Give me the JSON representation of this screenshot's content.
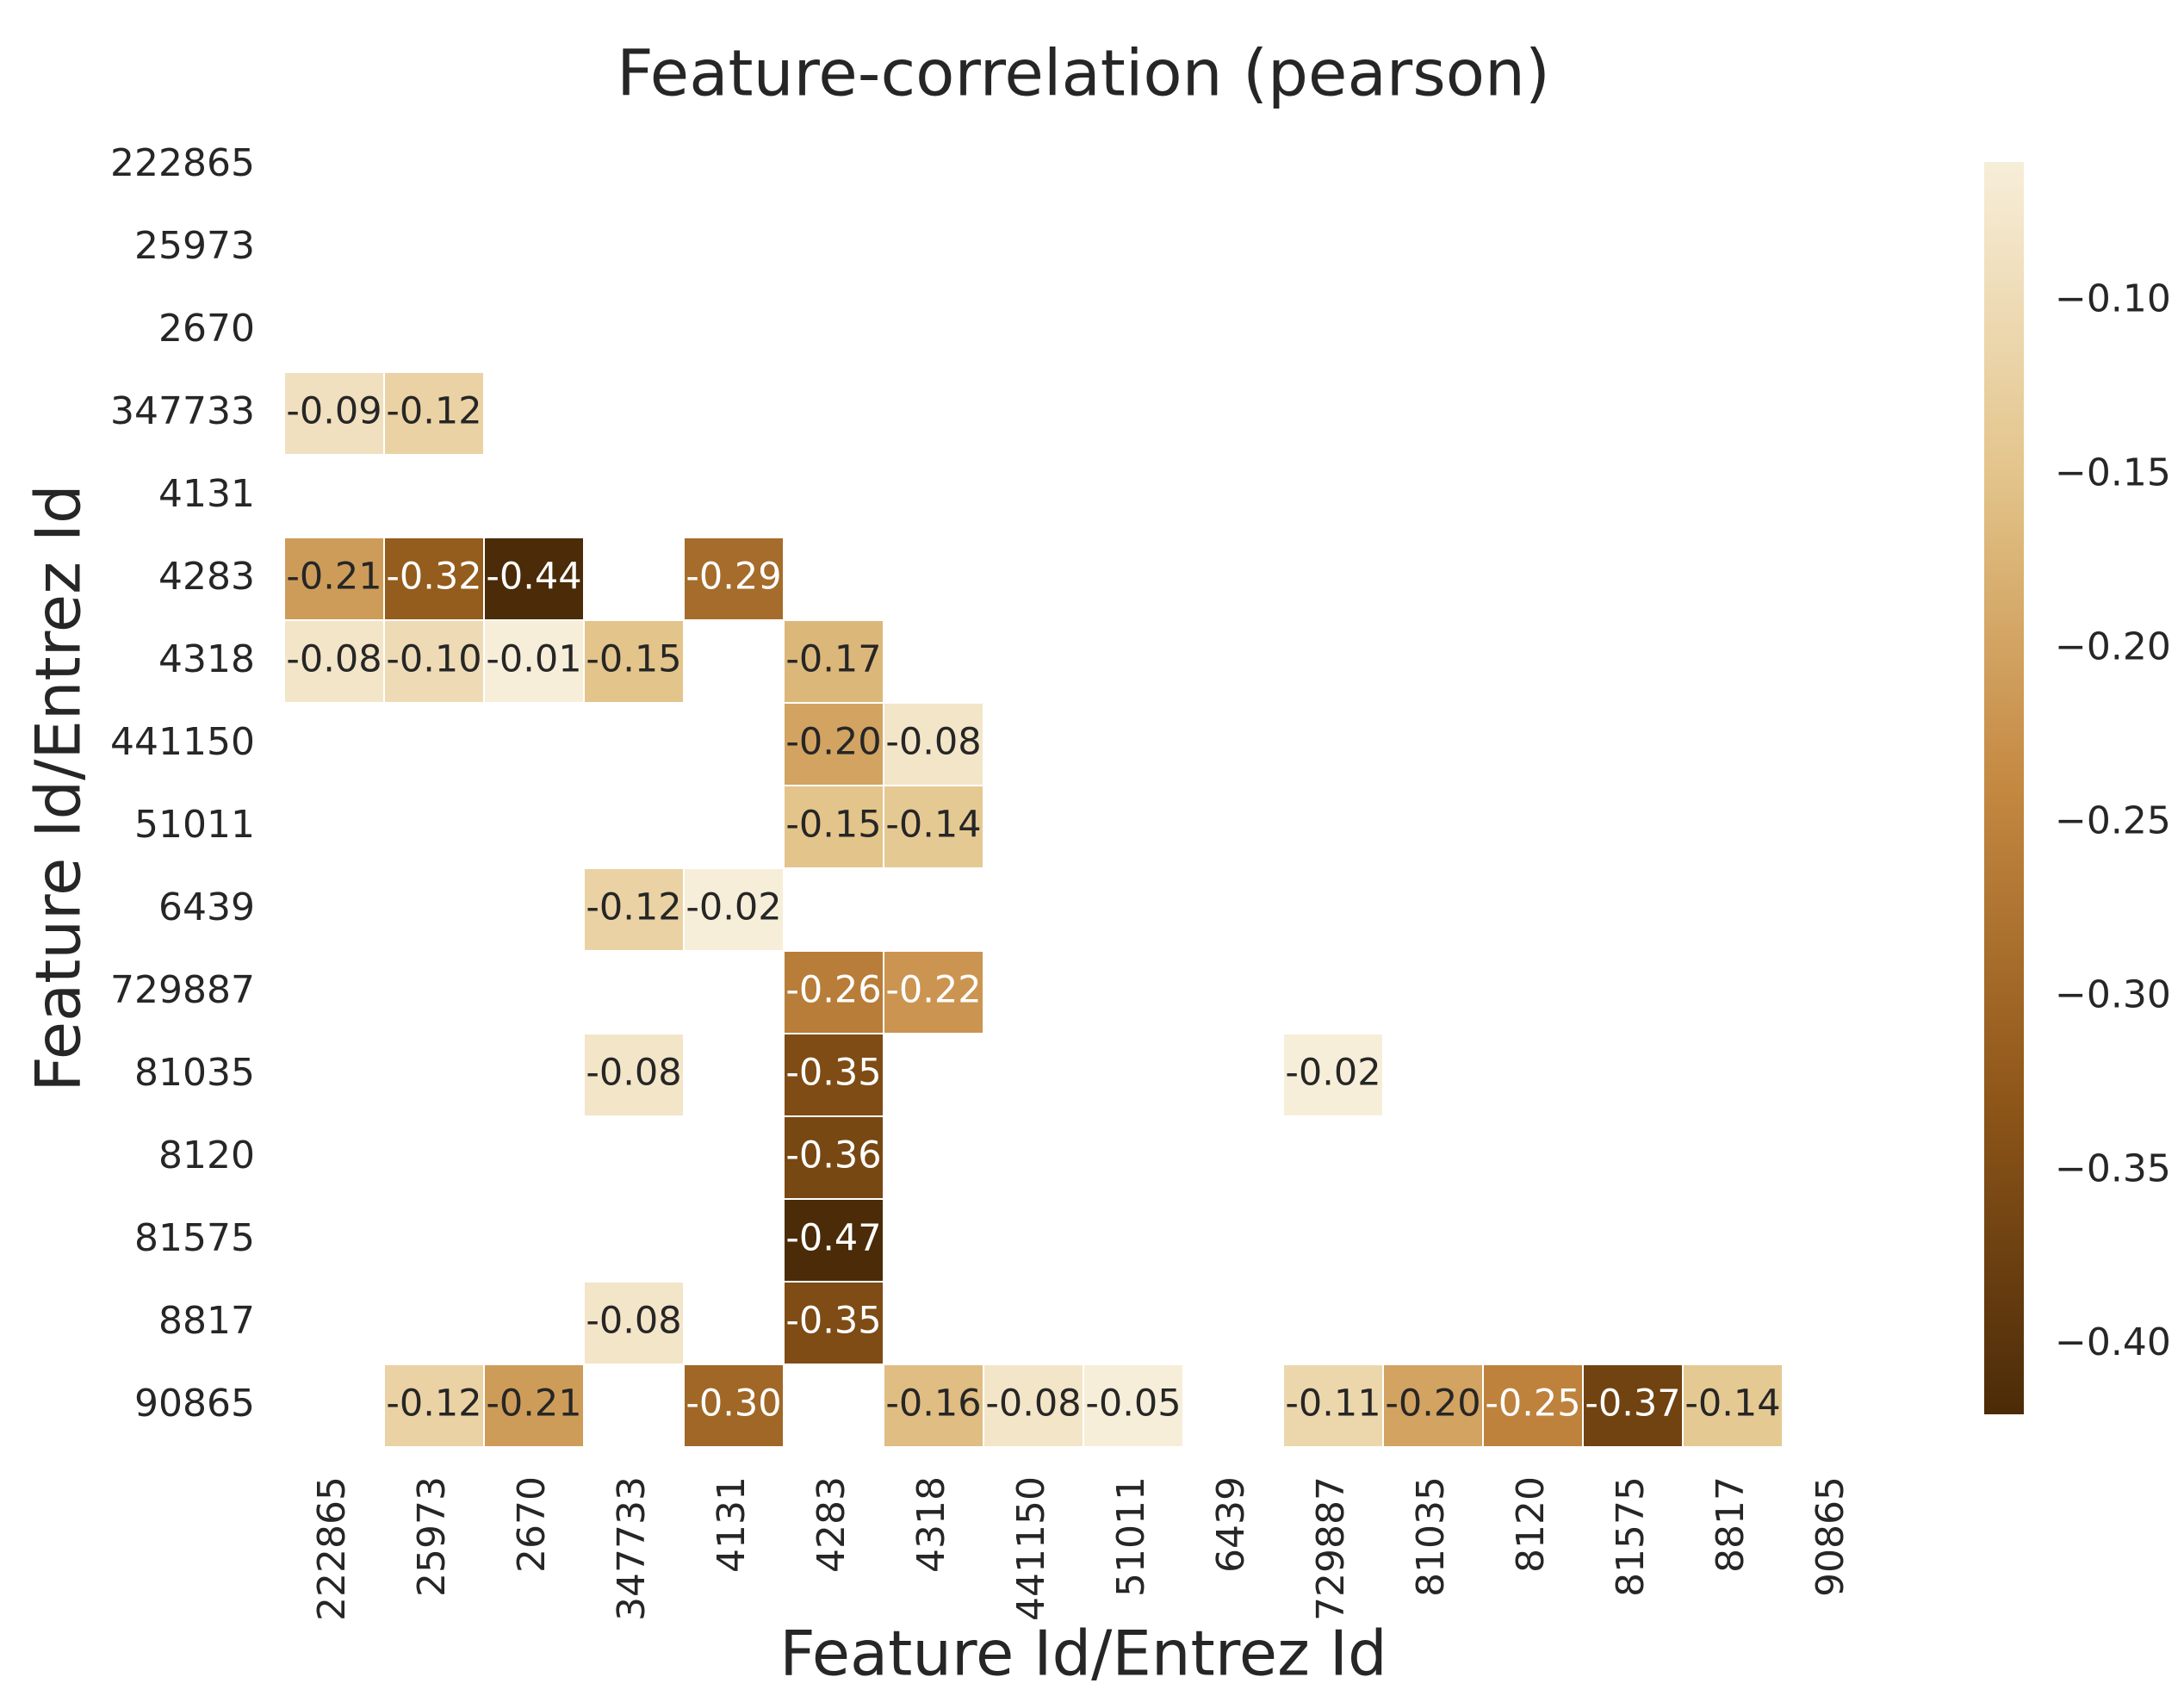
{
  "chart_data": {
    "type": "heatmap",
    "title": "Feature-correlation (pearson)",
    "x_label": "Feature Id/Entrez Id",
    "y_label": "Feature Id/Entrez Id",
    "x_categories": [
      "222865",
      "25973",
      "2670",
      "347733",
      "4131",
      "4283",
      "4318",
      "441150",
      "51011",
      "6439",
      "729887",
      "81035",
      "8120",
      "81575",
      "8817",
      "90865"
    ],
    "y_categories": [
      "222865",
      "25973",
      "2670",
      "347733",
      "4131",
      "4283",
      "4318",
      "441150",
      "51011",
      "6439",
      "729887",
      "81035",
      "8120",
      "81575",
      "8817",
      "90865"
    ],
    "z": [
      [
        null,
        null,
        null,
        null,
        null,
        null,
        null,
        null,
        null,
        null,
        null,
        null,
        null,
        null,
        null,
        null
      ],
      [
        null,
        null,
        null,
        null,
        null,
        null,
        null,
        null,
        null,
        null,
        null,
        null,
        null,
        null,
        null,
        null
      ],
      [
        null,
        null,
        null,
        null,
        null,
        null,
        null,
        null,
        null,
        null,
        null,
        null,
        null,
        null,
        null,
        null
      ],
      [
        -0.09,
        -0.12,
        null,
        null,
        null,
        null,
        null,
        null,
        null,
        null,
        null,
        null,
        null,
        null,
        null,
        null
      ],
      [
        null,
        null,
        null,
        null,
        null,
        null,
        null,
        null,
        null,
        null,
        null,
        null,
        null,
        null,
        null,
        null
      ],
      [
        -0.21,
        -0.32,
        -0.44,
        null,
        -0.29,
        null,
        null,
        null,
        null,
        null,
        null,
        null,
        null,
        null,
        null,
        null
      ],
      [
        -0.08,
        -0.1,
        -0.01,
        -0.15,
        null,
        -0.17,
        null,
        null,
        null,
        null,
        null,
        null,
        null,
        null,
        null,
        null
      ],
      [
        null,
        null,
        null,
        null,
        null,
        -0.2,
        -0.08,
        null,
        null,
        null,
        null,
        null,
        null,
        null,
        null,
        null
      ],
      [
        null,
        null,
        null,
        null,
        null,
        -0.15,
        -0.14,
        null,
        null,
        null,
        null,
        null,
        null,
        null,
        null,
        null
      ],
      [
        null,
        null,
        null,
        -0.12,
        -0.02,
        null,
        null,
        null,
        null,
        null,
        null,
        null,
        null,
        null,
        null,
        null
      ],
      [
        null,
        null,
        null,
        null,
        null,
        -0.26,
        -0.22,
        null,
        null,
        null,
        null,
        null,
        null,
        null,
        null,
        null
      ],
      [
        null,
        null,
        null,
        -0.08,
        null,
        -0.35,
        null,
        null,
        null,
        null,
        -0.02,
        null,
        null,
        null,
        null,
        null
      ],
      [
        null,
        null,
        null,
        null,
        null,
        -0.36,
        null,
        null,
        null,
        null,
        null,
        null,
        null,
        null,
        null,
        null
      ],
      [
        null,
        null,
        null,
        null,
        null,
        -0.47,
        null,
        null,
        null,
        null,
        null,
        null,
        null,
        null,
        null,
        null
      ],
      [
        null,
        null,
        null,
        -0.08,
        null,
        -0.35,
        null,
        null,
        null,
        null,
        null,
        null,
        null,
        null,
        null,
        null
      ],
      [
        null,
        -0.12,
        -0.21,
        null,
        -0.3,
        null,
        -0.16,
        -0.08,
        -0.05,
        null,
        -0.11,
        -0.2,
        -0.25,
        -0.37,
        -0.14,
        null
      ]
    ],
    "value_labels": [
      [
        null,
        null,
        null,
        null,
        null,
        null,
        null,
        null,
        null,
        null,
        null,
        null,
        null,
        null,
        null,
        null
      ],
      [
        null,
        null,
        null,
        null,
        null,
        null,
        null,
        null,
        null,
        null,
        null,
        null,
        null,
        null,
        null,
        null
      ],
      [
        null,
        null,
        null,
        null,
        null,
        null,
        null,
        null,
        null,
        null,
        null,
        null,
        null,
        null,
        null,
        null
      ],
      [
        "-0.09",
        "-0.12",
        null,
        null,
        null,
        null,
        null,
        null,
        null,
        null,
        null,
        null,
        null,
        null,
        null,
        null
      ],
      [
        null,
        null,
        null,
        null,
        null,
        null,
        null,
        null,
        null,
        null,
        null,
        null,
        null,
        null,
        null,
        null
      ],
      [
        "-0.21",
        "-0.32",
        "-0.44",
        null,
        "-0.29",
        null,
        null,
        null,
        null,
        null,
        null,
        null,
        null,
        null,
        null,
        null
      ],
      [
        "-0.08",
        "-0.10",
        "-0.01",
        "-0.15",
        null,
        "-0.17",
        null,
        null,
        null,
        null,
        null,
        null,
        null,
        null,
        null,
        null
      ],
      [
        null,
        null,
        null,
        null,
        null,
        "-0.20",
        "-0.08",
        null,
        null,
        null,
        null,
        null,
        null,
        null,
        null,
        null
      ],
      [
        null,
        null,
        null,
        null,
        null,
        "-0.15",
        "-0.14",
        null,
        null,
        null,
        null,
        null,
        null,
        null,
        null,
        null
      ],
      [
        null,
        null,
        null,
        "-0.12",
        "-0.02",
        null,
        null,
        null,
        null,
        null,
        null,
        null,
        null,
        null,
        null,
        null
      ],
      [
        null,
        null,
        null,
        null,
        null,
        "-0.26",
        "-0.22",
        null,
        null,
        null,
        null,
        null,
        null,
        null,
        null,
        null
      ],
      [
        null,
        null,
        null,
        "-0.08",
        null,
        "-0.35",
        null,
        null,
        null,
        null,
        "-0.02",
        null,
        null,
        null,
        null,
        null
      ],
      [
        null,
        null,
        null,
        null,
        null,
        "-0.36",
        null,
        null,
        null,
        null,
        null,
        null,
        null,
        null,
        null,
        null
      ],
      [
        null,
        null,
        null,
        null,
        null,
        "-0.47",
        null,
        null,
        null,
        null,
        null,
        null,
        null,
        null,
        null,
        null
      ],
      [
        null,
        null,
        null,
        "-0.08",
        null,
        "-0.35",
        null,
        null,
        null,
        null,
        null,
        null,
        null,
        null,
        null,
        null
      ],
      [
        null,
        "-0.12",
        "-0.21",
        null,
        "-0.30",
        null,
        "-0.16",
        "-0.08",
        "-0.05",
        null,
        "-0.11",
        "-0.20",
        "-0.25",
        "-0.37",
        "-0.14",
        null
      ]
    ],
    "zlim": [
      -0.42,
      -0.06
    ],
    "colorbar_ticks": [
      {
        "value": -0.1,
        "label": "−0.10"
      },
      {
        "value": -0.15,
        "label": "−0.15"
      },
      {
        "value": -0.2,
        "label": "−0.20"
      },
      {
        "value": -0.25,
        "label": "−0.25"
      },
      {
        "value": -0.3,
        "label": "−0.30"
      },
      {
        "value": -0.35,
        "label": "−0.35"
      },
      {
        "value": -0.4,
        "label": "−0.40"
      }
    ],
    "colors": [
      "#f7eed9",
      "#e3c48a",
      "#c48841",
      "#8e5619",
      "#4b2b08"
    ]
  }
}
